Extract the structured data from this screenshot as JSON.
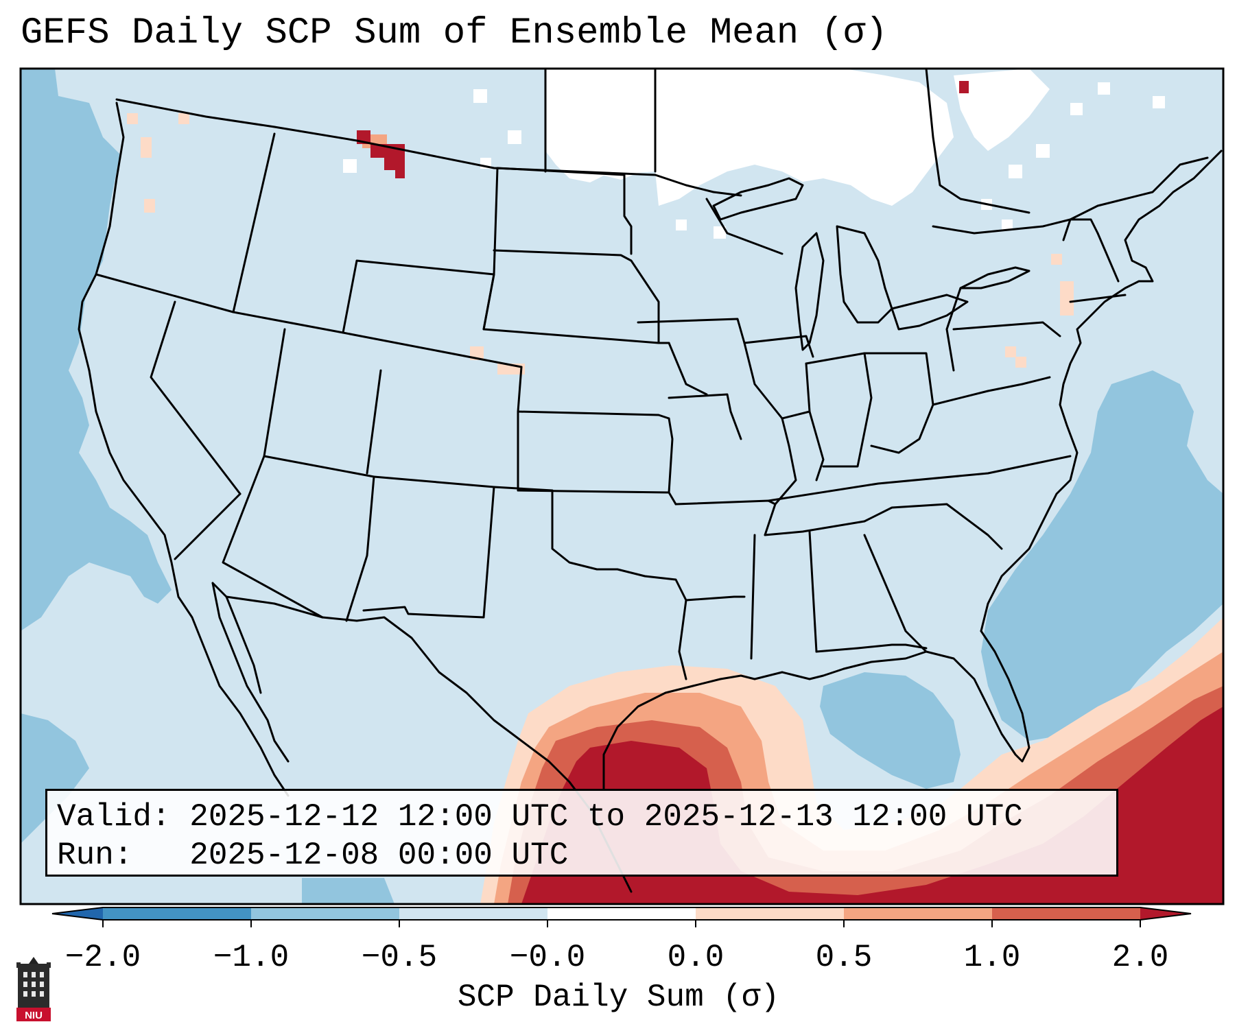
{
  "title": "GEFS Daily SCP Sum of Ensemble Mean (σ)",
  "info": {
    "valid_line": "Valid: 2025-12-12 12:00 UTC to 2025-12-13 12:00 UTC",
    "run_line": "Run:   2025-12-08 00:00 UTC"
  },
  "colorbar": {
    "label": "SCP Daily Sum (σ)",
    "ticks": [
      "−2.0",
      "−1.0",
      "−0.5",
      "−0.0",
      "0.0",
      "0.5",
      "1.0",
      "2.0"
    ],
    "bins": [
      {
        "from": "<-2.0",
        "color": "#2166ac"
      },
      {
        "from": "-2.0",
        "to": "-1.0",
        "color": "#4393c3"
      },
      {
        "from": "-1.0",
        "to": "-0.5",
        "color": "#92c5de"
      },
      {
        "from": "-0.5",
        "to": "-0.0",
        "color": "#d1e5f0"
      },
      {
        "from": "-0.0",
        "to": "0.0",
        "color": "#ffffff"
      },
      {
        "from": "0.0",
        "to": "0.5",
        "color": "#fddbc7"
      },
      {
        "from": "0.5",
        "to": "1.0",
        "color": "#f4a582"
      },
      {
        "from": "1.0",
        "to": "2.0",
        "color": "#d6604d"
      },
      {
        "from": ">2.0",
        "color": "#b2182b"
      }
    ]
  },
  "map": {
    "background_color": "#d1e5f0",
    "ocean_negative_color": "#92c5de",
    "no_anomaly_color": "#ffffff",
    "gulf_positive_colors": [
      "#fddbc7",
      "#f4a582",
      "#d6604d",
      "#b2182b"
    ]
  },
  "logo": {
    "text": "NIU",
    "icon": "university-tower-icon"
  }
}
